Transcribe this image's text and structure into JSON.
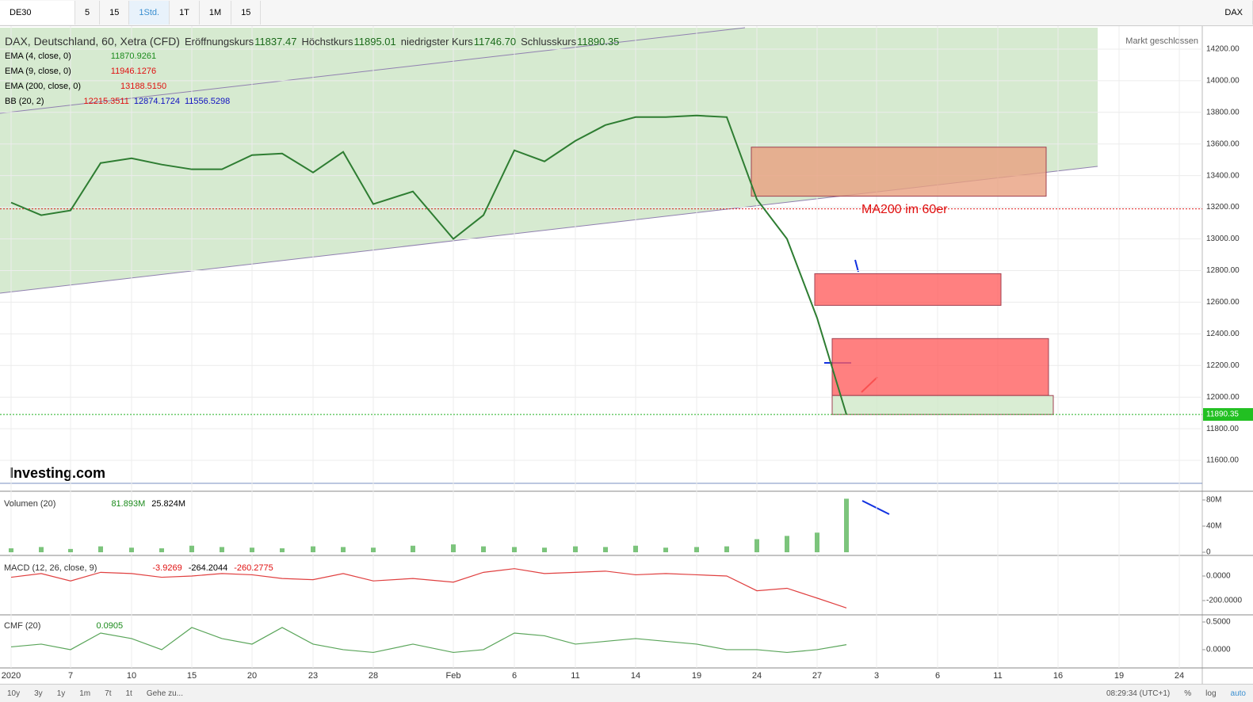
{
  "toolbar": {
    "symbol": "DE30",
    "intervals": [
      "5",
      "15",
      "1Std.",
      "1T",
      "1M",
      "15"
    ],
    "exchange": "DAX"
  },
  "chart_data": [
    {
      "type": "line",
      "title": "DAX, Deutschland, 60, Xetra (CFD)",
      "status": "Markt geschlossen",
      "watermark": "Investing.com",
      "ohlc": [
        {
          "label": "Eröffnungskurs",
          "value": "11837.47"
        },
        {
          "label": "Höchstkurs",
          "value": "11895.01"
        },
        {
          "label": "niedrigster Kurs",
          "value": "11746.70"
        },
        {
          "label": "Schlusskurs",
          "value": "11890.35"
        }
      ],
      "indicators": [
        {
          "label": "EMA (4, close, 0)",
          "values": [
            "11870.9261"
          ],
          "colors": [
            "#1a8a1a"
          ]
        },
        {
          "label": "EMA (9, close, 0)",
          "values": [
            "11946.1276"
          ],
          "colors": [
            "#e01010"
          ]
        },
        {
          "label": "EMA (200, close, 0)",
          "values": [
            "13188.5150"
          ],
          "colors": [
            "#e01010"
          ]
        },
        {
          "label": "BB (20, 2)",
          "values": [
            "12215.3511",
            "12874.1724",
            "11556.5298"
          ],
          "colors": [
            "#e01010",
            "#1010c0",
            "#1010c0"
          ]
        }
      ],
      "categories": [
        "2020",
        null,
        "7",
        null,
        "10",
        null,
        "15",
        null,
        "20",
        null,
        "23",
        null,
        "28",
        null,
        "Feb",
        null,
        "6",
        null,
        "11",
        null,
        "14",
        null,
        "19",
        null,
        "24",
        null,
        "27",
        null,
        "3",
        null,
        "6",
        null,
        "11",
        null,
        "16",
        null,
        "19",
        null,
        "24"
      ],
      "values": [
        13230,
        13150,
        13180,
        13480,
        13510,
        13470,
        13440,
        13440,
        13530,
        13540,
        13420,
        13550,
        13220,
        13300,
        13000,
        13150,
        13560,
        13490,
        13620,
        13720,
        13770,
        13770,
        13780,
        13770,
        13250,
        13000,
        12500,
        11890,
        null,
        null,
        null,
        null,
        null,
        null,
        null,
        null,
        null,
        null,
        null
      ],
      "color": "#2e7d32",
      "ylim": [
        11455,
        14345
      ],
      "yticks": [
        {
          "value": 11600,
          "label": "11600.00"
        },
        {
          "value": 11800,
          "label": "11800.00"
        },
        {
          "value": 12000,
          "label": "12000.00"
        },
        {
          "value": 12200,
          "label": "12200.00"
        },
        {
          "value": 12400,
          "label": "12400.00"
        },
        {
          "value": 12600,
          "label": "12600.00"
        },
        {
          "value": 12800,
          "label": "12800.00"
        },
        {
          "value": 13000,
          "label": "13000.00"
        },
        {
          "value": 13200,
          "label": "13200.00"
        },
        {
          "value": 13400,
          "label": "13400.00"
        },
        {
          "value": 13600,
          "label": "13600.00"
        },
        {
          "value": 13800,
          "label": "13800.00"
        },
        {
          "value": 14000,
          "label": "14000.00"
        },
        {
          "value": 14200,
          "label": "14200.00"
        }
      ],
      "grid": true,
      "last_price": 11890.35,
      "annotation": {
        "text": "MA200 im 60er",
        "value": 13190
      },
      "zones": [
        {
          "high": 13580,
          "low": 13270,
          "color": "#e8a080"
        },
        {
          "high": 12780,
          "low": 12580,
          "color": "#ff6060"
        },
        {
          "high": 12370,
          "low": 12010,
          "color": "#ff6060"
        },
        {
          "high": 12010,
          "low": 11890,
          "color": "#cfe8c8"
        }
      ]
    },
    {
      "type": "bar",
      "title": "Volumen (20)",
      "legend_values": [
        "81.893M",
        "25.824M"
      ],
      "legend_colors": [
        "#1a8a1a",
        "#000000"
      ],
      "values": [
        6000000,
        8000000,
        5000000,
        9000000,
        7000000,
        6000000,
        10000000,
        8000000,
        7000000,
        6000000,
        9000000,
        8000000,
        7000000,
        10000000,
        12000000,
        9000000,
        8000000,
        7000000,
        9000000,
        8000000,
        10000000,
        7000000,
        8000000,
        9000000,
        20000000,
        25000000,
        30000000,
        81893000,
        null,
        null,
        null,
        null,
        null,
        null,
        null,
        null,
        null,
        null,
        null
      ],
      "color": "#7cc47c",
      "ylim": [
        0,
        80000000
      ],
      "yticks": [
        0,
        {
          "value": 40000000,
          "label": "40M"
        },
        {
          "value": 80000000,
          "label": "80M"
        }
      ]
    },
    {
      "type": "line",
      "title": "MACD (12, 26, close, 9)",
      "legend_values": [
        "-3.9269",
        "-264.2044",
        "-260.2775"
      ],
      "legend_colors": [
        "#e01010",
        "#000000",
        "#e01010"
      ],
      "values": [
        -10,
        20,
        -40,
        30,
        20,
        -10,
        0,
        20,
        10,
        -20,
        -30,
        20,
        -40,
        -20,
        -50,
        30,
        60,
        20,
        30,
        40,
        10,
        20,
        10,
        0,
        -120,
        -100,
        -180,
        -260,
        null,
        null,
        null,
        null,
        null,
        null,
        null,
        null,
        null,
        null,
        null
      ],
      "color": "#e04040",
      "ylim": [
        -310,
        155
      ],
      "yticks": [
        {
          "value": 0,
          "label": "0.0000"
        },
        {
          "value": -200,
          "label": "-200.0000"
        }
      ]
    },
    {
      "type": "line",
      "title": "CMF (20)",
      "legend_values": [
        "0.0905"
      ],
      "legend_colors": [
        "#1a8a1a"
      ],
      "values": [
        0.05,
        0.1,
        0.0,
        0.3,
        0.2,
        0.0,
        0.4,
        0.2,
        0.1,
        0.4,
        0.1,
        0.0,
        -0.05,
        0.1,
        -0.05,
        0.0,
        0.3,
        0.25,
        0.1,
        0.15,
        0.2,
        0.15,
        0.1,
        0.0,
        0.0,
        -0.05,
        0.0,
        0.09,
        null,
        null,
        null,
        null,
        null,
        null,
        null,
        null,
        null,
        null,
        null
      ],
      "color": "#5aa55a",
      "ylim": [
        -0.33,
        0.6
      ],
      "yticks": [
        {
          "value": 0.5,
          "label": "0.5000"
        },
        {
          "value": 0,
          "label": "0.0000"
        }
      ]
    }
  ],
  "footer": {
    "ranges": [
      "10y",
      "3y",
      "1y",
      "1m",
      "7t",
      "1t"
    ],
    "goto": "Gehe zu...",
    "time": "08:29:34 (UTC+1)",
    "options": [
      "%",
      "log",
      "auto"
    ]
  }
}
